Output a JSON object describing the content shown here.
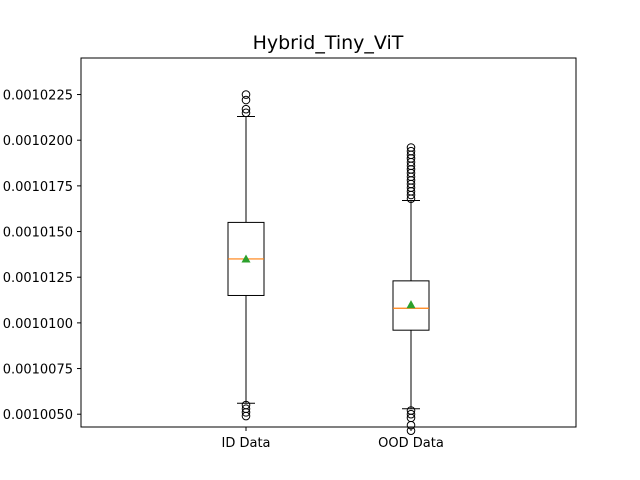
{
  "chart_data": {
    "type": "boxplot",
    "title": "Hybrid_Tiny_ViT",
    "xlabel": "",
    "ylabel": "",
    "ylim": [
      0.0010043,
      0.0010245
    ],
    "yticks": [
      0.001005,
      0.0010075,
      0.00101,
      0.0010125,
      0.001015,
      0.0010175,
      0.00102,
      0.0010225
    ],
    "ytick_labels": [
      "0.0010050",
      "0.0010075",
      "0.0010100",
      "0.0010125",
      "0.0010150",
      "0.0010175",
      "0.0010200",
      "0.0010225"
    ],
    "categories": [
      "ID Data",
      "OOD Data"
    ],
    "boxes": [
      {
        "name": "ID Data",
        "whisker_low": 0.0010056,
        "q1": 0.0010115,
        "median": 0.0010135,
        "q3": 0.0010155,
        "whisker_high": 0.0010213,
        "mean": 0.0010135,
        "outliers": [
          0.0010049,
          0.0010051,
          0.0010053,
          0.0010055,
          0.0010215,
          0.0010217,
          0.0010222,
          0.0010225
        ]
      },
      {
        "name": "OOD Data",
        "whisker_low": 0.0010053,
        "q1": 0.0010096,
        "median": 0.0010108,
        "q3": 0.0010123,
        "whisker_high": 0.0010167,
        "mean": 0.001011,
        "outliers": [
          0.0010041,
          0.0010044,
          0.0010048,
          0.001005,
          0.0010052,
          0.0010168,
          0.001017,
          0.0010172,
          0.0010174,
          0.0010176,
          0.0010178,
          0.001018,
          0.0010182,
          0.0010184,
          0.0010186,
          0.0010188,
          0.001019,
          0.0010192,
          0.0010194,
          0.0010196
        ]
      }
    ],
    "colors": {
      "box": "#000000",
      "median": "#ff7f0e",
      "mean": "#2ca02c",
      "outlier": "#000000"
    }
  }
}
